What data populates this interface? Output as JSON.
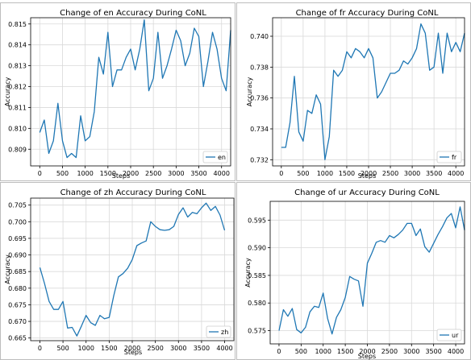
{
  "chart_data": [
    {
      "type": "line",
      "title": "Change of en Accuracy During CoNL",
      "xlabel": "Steps",
      "ylabel": "Accuracy",
      "xlim": [
        -200,
        4200
      ],
      "ylim": [
        0.8082,
        0.8153
      ],
      "xticks": [
        0,
        500,
        1000,
        1500,
        2000,
        2500,
        3000,
        3500,
        4000
      ],
      "yticks": [
        0.809,
        0.81,
        0.811,
        0.812,
        0.813,
        0.814,
        0.815
      ],
      "ytick_labels": [
        "0.809",
        "0.810",
        "0.811",
        "0.812",
        "0.813",
        "0.814",
        "0.815"
      ],
      "legend": "bottom-right",
      "grid": true,
      "series": [
        {
          "name": "en",
          "color": "#1f77b4",
          "x": [
            0,
            100,
            200,
            300,
            400,
            500,
            600,
            700,
            800,
            900,
            1000,
            1100,
            1200,
            1300,
            1400,
            1500,
            1600,
            1700,
            1800,
            1900,
            2000,
            2100,
            2200,
            2300,
            2400,
            2500,
            2600,
            2700,
            2800,
            2900,
            3000,
            3100,
            3200,
            3300,
            3400,
            3500,
            3600,
            3700,
            3800,
            3900,
            4000,
            4100,
            4200
          ],
          "y": [
            0.8098,
            0.8104,
            0.8088,
            0.8094,
            0.8112,
            0.8094,
            0.8086,
            0.8088,
            0.8086,
            0.8106,
            0.8094,
            0.8096,
            0.8108,
            0.8134,
            0.8126,
            0.8146,
            0.812,
            0.8128,
            0.8128,
            0.8134,
            0.8138,
            0.8128,
            0.8138,
            0.8152,
            0.8118,
            0.8124,
            0.8146,
            0.8124,
            0.813,
            0.8138,
            0.8147,
            0.8142,
            0.813,
            0.8136,
            0.8148,
            0.8144,
            0.812,
            0.8132,
            0.8146,
            0.8138,
            0.8124,
            0.8118,
            0.8147
          ]
        }
      ]
    },
    {
      "type": "line",
      "title": "Change of fr Accuracy During CoNL",
      "xlabel": "Steps",
      "ylabel": "Accuracy",
      "xlim": [
        -200,
        4200
      ],
      "ylim": [
        0.7316,
        0.7412
      ],
      "xticks": [
        0,
        500,
        1000,
        1500,
        2000,
        2500,
        3000,
        3500,
        4000
      ],
      "yticks": [
        0.732,
        0.734,
        0.736,
        0.738,
        0.74
      ],
      "ytick_labels": [
        "0.732",
        "0.734",
        "0.736",
        "0.738",
        "0.740"
      ],
      "legend": "bottom-right",
      "grid": true,
      "series": [
        {
          "name": "fr",
          "color": "#1f77b4",
          "x": [
            0,
            100,
            200,
            300,
            400,
            500,
            600,
            700,
            800,
            900,
            1000,
            1100,
            1200,
            1300,
            1400,
            1500,
            1600,
            1700,
            1800,
            1900,
            2000,
            2100,
            2200,
            2300,
            2400,
            2500,
            2600,
            2700,
            2800,
            2900,
            3000,
            3100,
            3200,
            3300,
            3400,
            3500,
            3600,
            3700,
            3800,
            3900,
            4000,
            4100,
            4200
          ],
          "y": [
            0.7328,
            0.7328,
            0.7344,
            0.7374,
            0.7338,
            0.7332,
            0.7352,
            0.735,
            0.7362,
            0.7356,
            0.732,
            0.7335,
            0.7378,
            0.7374,
            0.7378,
            0.739,
            0.7386,
            0.7392,
            0.739,
            0.7386,
            0.7392,
            0.7386,
            0.736,
            0.7364,
            0.737,
            0.7376,
            0.7376,
            0.7378,
            0.7384,
            0.7382,
            0.7386,
            0.7392,
            0.7408,
            0.7402,
            0.7378,
            0.738,
            0.7402,
            0.7376,
            0.7402,
            0.739,
            0.7396,
            0.739,
            0.7402
          ]
        }
      ]
    },
    {
      "type": "line",
      "title": "Change of zh Accuracy During CoNL",
      "xlabel": "Steps",
      "ylabel": "Accuracy",
      "xlim": [
        -200,
        4200
      ],
      "ylim": [
        0.6642,
        0.7071
      ],
      "xticks": [
        0,
        500,
        1000,
        1500,
        2000,
        2500,
        3000,
        3500,
        4000
      ],
      "yticks": [
        0.665,
        0.67,
        0.675,
        0.68,
        0.685,
        0.69,
        0.695,
        0.7,
        0.705
      ],
      "ytick_labels": [
        "0.665",
        "0.670",
        "0.675",
        "0.680",
        "0.685",
        "0.690",
        "0.695",
        "0.700",
        "0.705"
      ],
      "legend": "bottom-right",
      "grid": true,
      "series": [
        {
          "name": "zh",
          "color": "#1f77b4",
          "x": [
            0,
            100,
            200,
            300,
            400,
            500,
            600,
            700,
            800,
            900,
            1000,
            1100,
            1200,
            1300,
            1400,
            1500,
            1600,
            1700,
            1800,
            1900,
            2000,
            2100,
            2200,
            2300,
            2400,
            2500,
            2600,
            2700,
            2800,
            2900,
            3000,
            3100,
            3200,
            3300,
            3400,
            3500,
            3600,
            3700,
            3800,
            3900,
            4000
          ],
          "y": [
            0.6862,
            0.6814,
            0.676,
            0.6736,
            0.6736,
            0.676,
            0.668,
            0.6682,
            0.6656,
            0.6686,
            0.6718,
            0.6696,
            0.6688,
            0.6718,
            0.6708,
            0.6712,
            0.6778,
            0.6834,
            0.6844,
            0.686,
            0.6886,
            0.6928,
            0.6936,
            0.6942,
            0.7,
            0.6986,
            0.6976,
            0.6974,
            0.6976,
            0.6986,
            0.7022,
            0.7042,
            0.7014,
            0.7028,
            0.7024,
            0.7042,
            0.7056,
            0.7034,
            0.7046,
            0.702,
            0.6974
          ]
        }
      ]
    },
    {
      "type": "line",
      "title": "Change of ur Accuracy During CoNL",
      "xlabel": "Steps",
      "ylabel": "Accuracy",
      "xlim": [
        -200,
        4200
      ],
      "ylim": [
        0.5726,
        0.5984
      ],
      "xticks": [
        0,
        500,
        1000,
        1500,
        2000,
        2500,
        3000,
        3500,
        4000
      ],
      "yticks": [
        0.575,
        0.58,
        0.585,
        0.59,
        0.595
      ],
      "ytick_labels": [
        "0.575",
        "0.580",
        "0.585",
        "0.590",
        "0.595"
      ],
      "legend": "bottom-right",
      "grid": true,
      "series": [
        {
          "name": "ur",
          "color": "#1f77b4",
          "x": [
            0,
            100,
            200,
            300,
            400,
            500,
            600,
            700,
            800,
            900,
            1000,
            1100,
            1200,
            1300,
            1400,
            1500,
            1600,
            1700,
            1800,
            1900,
            2000,
            2100,
            2200,
            2300,
            2400,
            2500,
            2600,
            2700,
            2800,
            2900,
            3000,
            3100,
            3200,
            3300,
            3400,
            3500,
            3600,
            3700,
            3800,
            3900,
            4000,
            4100,
            4200
          ],
          "y": [
            0.575,
            0.5788,
            0.5776,
            0.579,
            0.5752,
            0.5746,
            0.5756,
            0.5784,
            0.5794,
            0.5792,
            0.5818,
            0.5772,
            0.5744,
            0.5774,
            0.5788,
            0.581,
            0.5848,
            0.5843,
            0.584,
            0.5794,
            0.5872,
            0.589,
            0.591,
            0.5913,
            0.591,
            0.5922,
            0.5918,
            0.5924,
            0.5932,
            0.5944,
            0.5944,
            0.5922,
            0.5934,
            0.5902,
            0.5892,
            0.5908,
            0.5924,
            0.5938,
            0.5954,
            0.5962,
            0.5936,
            0.5974,
            0.5932
          ]
        }
      ]
    }
  ]
}
